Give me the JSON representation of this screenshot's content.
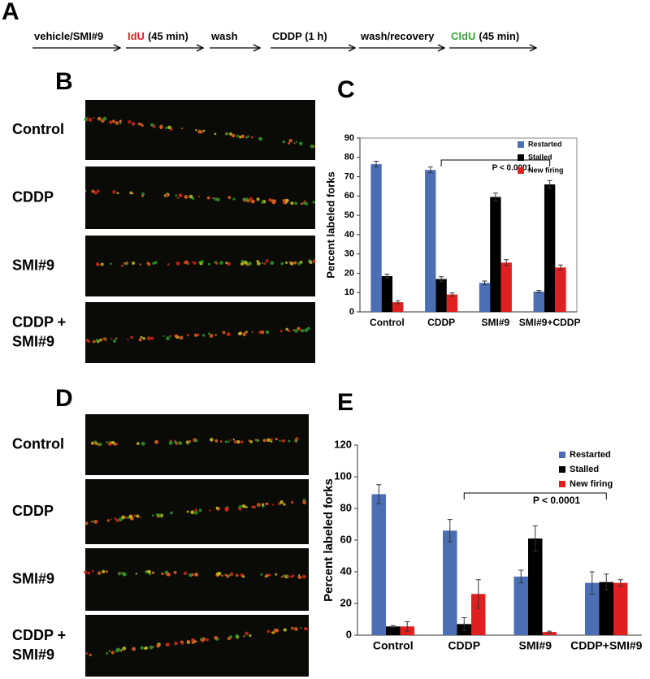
{
  "panels": {
    "a": "A",
    "b": "B",
    "c": "C",
    "d": "D",
    "e": "E"
  },
  "timeline": {
    "steps": [
      {
        "text": "vehicle/SMI#9"
      },
      {
        "highlight": "IdU",
        "highlight_color": "#e02020",
        "text": "(45 min)"
      },
      {
        "text": "wash"
      },
      {
        "text": "CDDP (1 h)"
      },
      {
        "text": "wash/recovery"
      },
      {
        "highlight": "CldU",
        "highlight_color": "#3aa33a",
        "text": "(45 min)"
      }
    ]
  },
  "images_b": [
    {
      "lines": [
        "Control"
      ]
    },
    {
      "lines": [
        "CDDP"
      ]
    },
    {
      "lines": [
        "SMI#9"
      ]
    },
    {
      "lines": [
        "CDDP +",
        "SMI#9"
      ]
    }
  ],
  "images_d": [
    {
      "lines": [
        "Control"
      ]
    },
    {
      "lines": [
        "CDDP"
      ]
    },
    {
      "lines": [
        "SMI#9"
      ]
    },
    {
      "lines": [
        "CDDP +",
        "SMI#9"
      ]
    }
  ],
  "chart_data": [
    {
      "type": "bar",
      "ylabel": "Percent labeled forks",
      "annotation": "P < 0.0001",
      "categories": [
        "Control",
        "CDDP",
        "SMI#9",
        "SMI#9+CDDP"
      ],
      "series": [
        {
          "name": "Restarted",
          "color": "#4a6fb5",
          "values": [
            76.5,
            73.5,
            15,
            10.5
          ],
          "errors": [
            1.5,
            1.5,
            1,
            0.6
          ]
        },
        {
          "name": "Stalled",
          "color": "#000000",
          "values": [
            18.5,
            17,
            59.5,
            66
          ],
          "errors": [
            1,
            1.2,
            2,
            2
          ]
        },
        {
          "name": "New firing",
          "color": "#e02020",
          "values": [
            5,
            9,
            25.5,
            23
          ],
          "errors": [
            0.8,
            0.8,
            1.5,
            1.3
          ]
        }
      ],
      "ylim": [
        0,
        90
      ],
      "yticks": [
        0,
        10,
        20,
        30,
        40,
        50,
        60,
        70,
        80,
        90
      ],
      "legend": "upper right"
    },
    {
      "type": "bar",
      "ylabel": "Percent labeled forks",
      "annotation": "P < 0.0001",
      "categories": [
        "Control",
        "CDDP",
        "SMI#9",
        "CDDP+SMI#9"
      ],
      "series": [
        {
          "name": "Restarted",
          "color": "#4a6fb5",
          "values": [
            89,
            66,
            37,
            33
          ],
          "errors": [
            6,
            7,
            4,
            7
          ]
        },
        {
          "name": "Stalled",
          "color": "#000000",
          "values": [
            5.5,
            7,
            61,
            33.5
          ],
          "errors": [
            0.5,
            4,
            8,
            5
          ]
        },
        {
          "name": "New firing",
          "color": "#e02020",
          "values": [
            5.5,
            26,
            2,
            33
          ],
          "errors": [
            3,
            9,
            0.5,
            2
          ]
        }
      ],
      "ylim": [
        0,
        120
      ],
      "yticks": [
        0,
        20,
        40,
        60,
        80,
        100,
        120
      ],
      "legend": "upper right"
    }
  ]
}
